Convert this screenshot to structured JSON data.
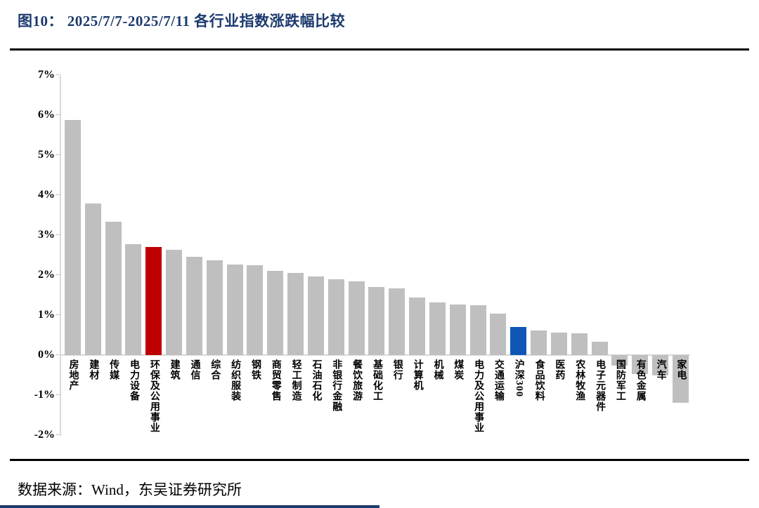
{
  "header": {
    "title": "图10： 2025/7/7-2025/7/11 各行业指数涨跌幅比较"
  },
  "chart_data": {
    "type": "bar",
    "title": "图10： 2025/7/7-2025/7/11 各行业指数涨跌幅比较",
    "xlabel": "",
    "ylabel": "",
    "ylim": [
      -2,
      7
    ],
    "ytick_step": 1,
    "ytick_suffix": "%",
    "grid": false,
    "legend": "none",
    "categories": [
      "房地产",
      "建材",
      "传媒",
      "电力设备",
      "环保及公用事业",
      "建筑",
      "通信",
      "综合",
      "纺织服装",
      "钢铁",
      "商贸零售",
      "轻工制造",
      "石油石化",
      "非银行金融",
      "餐饮旅游",
      "基础化工",
      "银行",
      "计算机",
      "机械",
      "煤炭",
      "电力及公用事业",
      "交通运输",
      "沪深300",
      "食品饮料",
      "医药",
      "农林牧渔",
      "电子元器件",
      "国防军工",
      "有色金属",
      "汽车",
      "家电"
    ],
    "values": [
      5.87,
      3.79,
      3.34,
      2.77,
      2.7,
      2.64,
      2.45,
      2.36,
      2.27,
      2.24,
      2.1,
      2.05,
      1.97,
      1.9,
      1.84,
      1.7,
      1.67,
      1.44,
      1.32,
      1.27,
      1.25,
      1.04,
      0.7,
      0.61,
      0.56,
      0.55,
      0.34,
      -0.27,
      -0.47,
      -0.5,
      -1.2
    ],
    "highlights": {
      "red_bar_category": "环保及公用事业",
      "red_bar_index": 4,
      "blue_bar_category": "沪深300",
      "blue_bar_index": 22
    },
    "colors": {
      "default_bar": "#BFBFBF",
      "red_bar": "#C00000",
      "blue_bar": "#1057B5",
      "axis": "#D9D9D9",
      "title": "#1C3A6E",
      "text": "#000000"
    }
  },
  "footer": {
    "source": "数据来源：Wind，东吴证券研究所"
  }
}
